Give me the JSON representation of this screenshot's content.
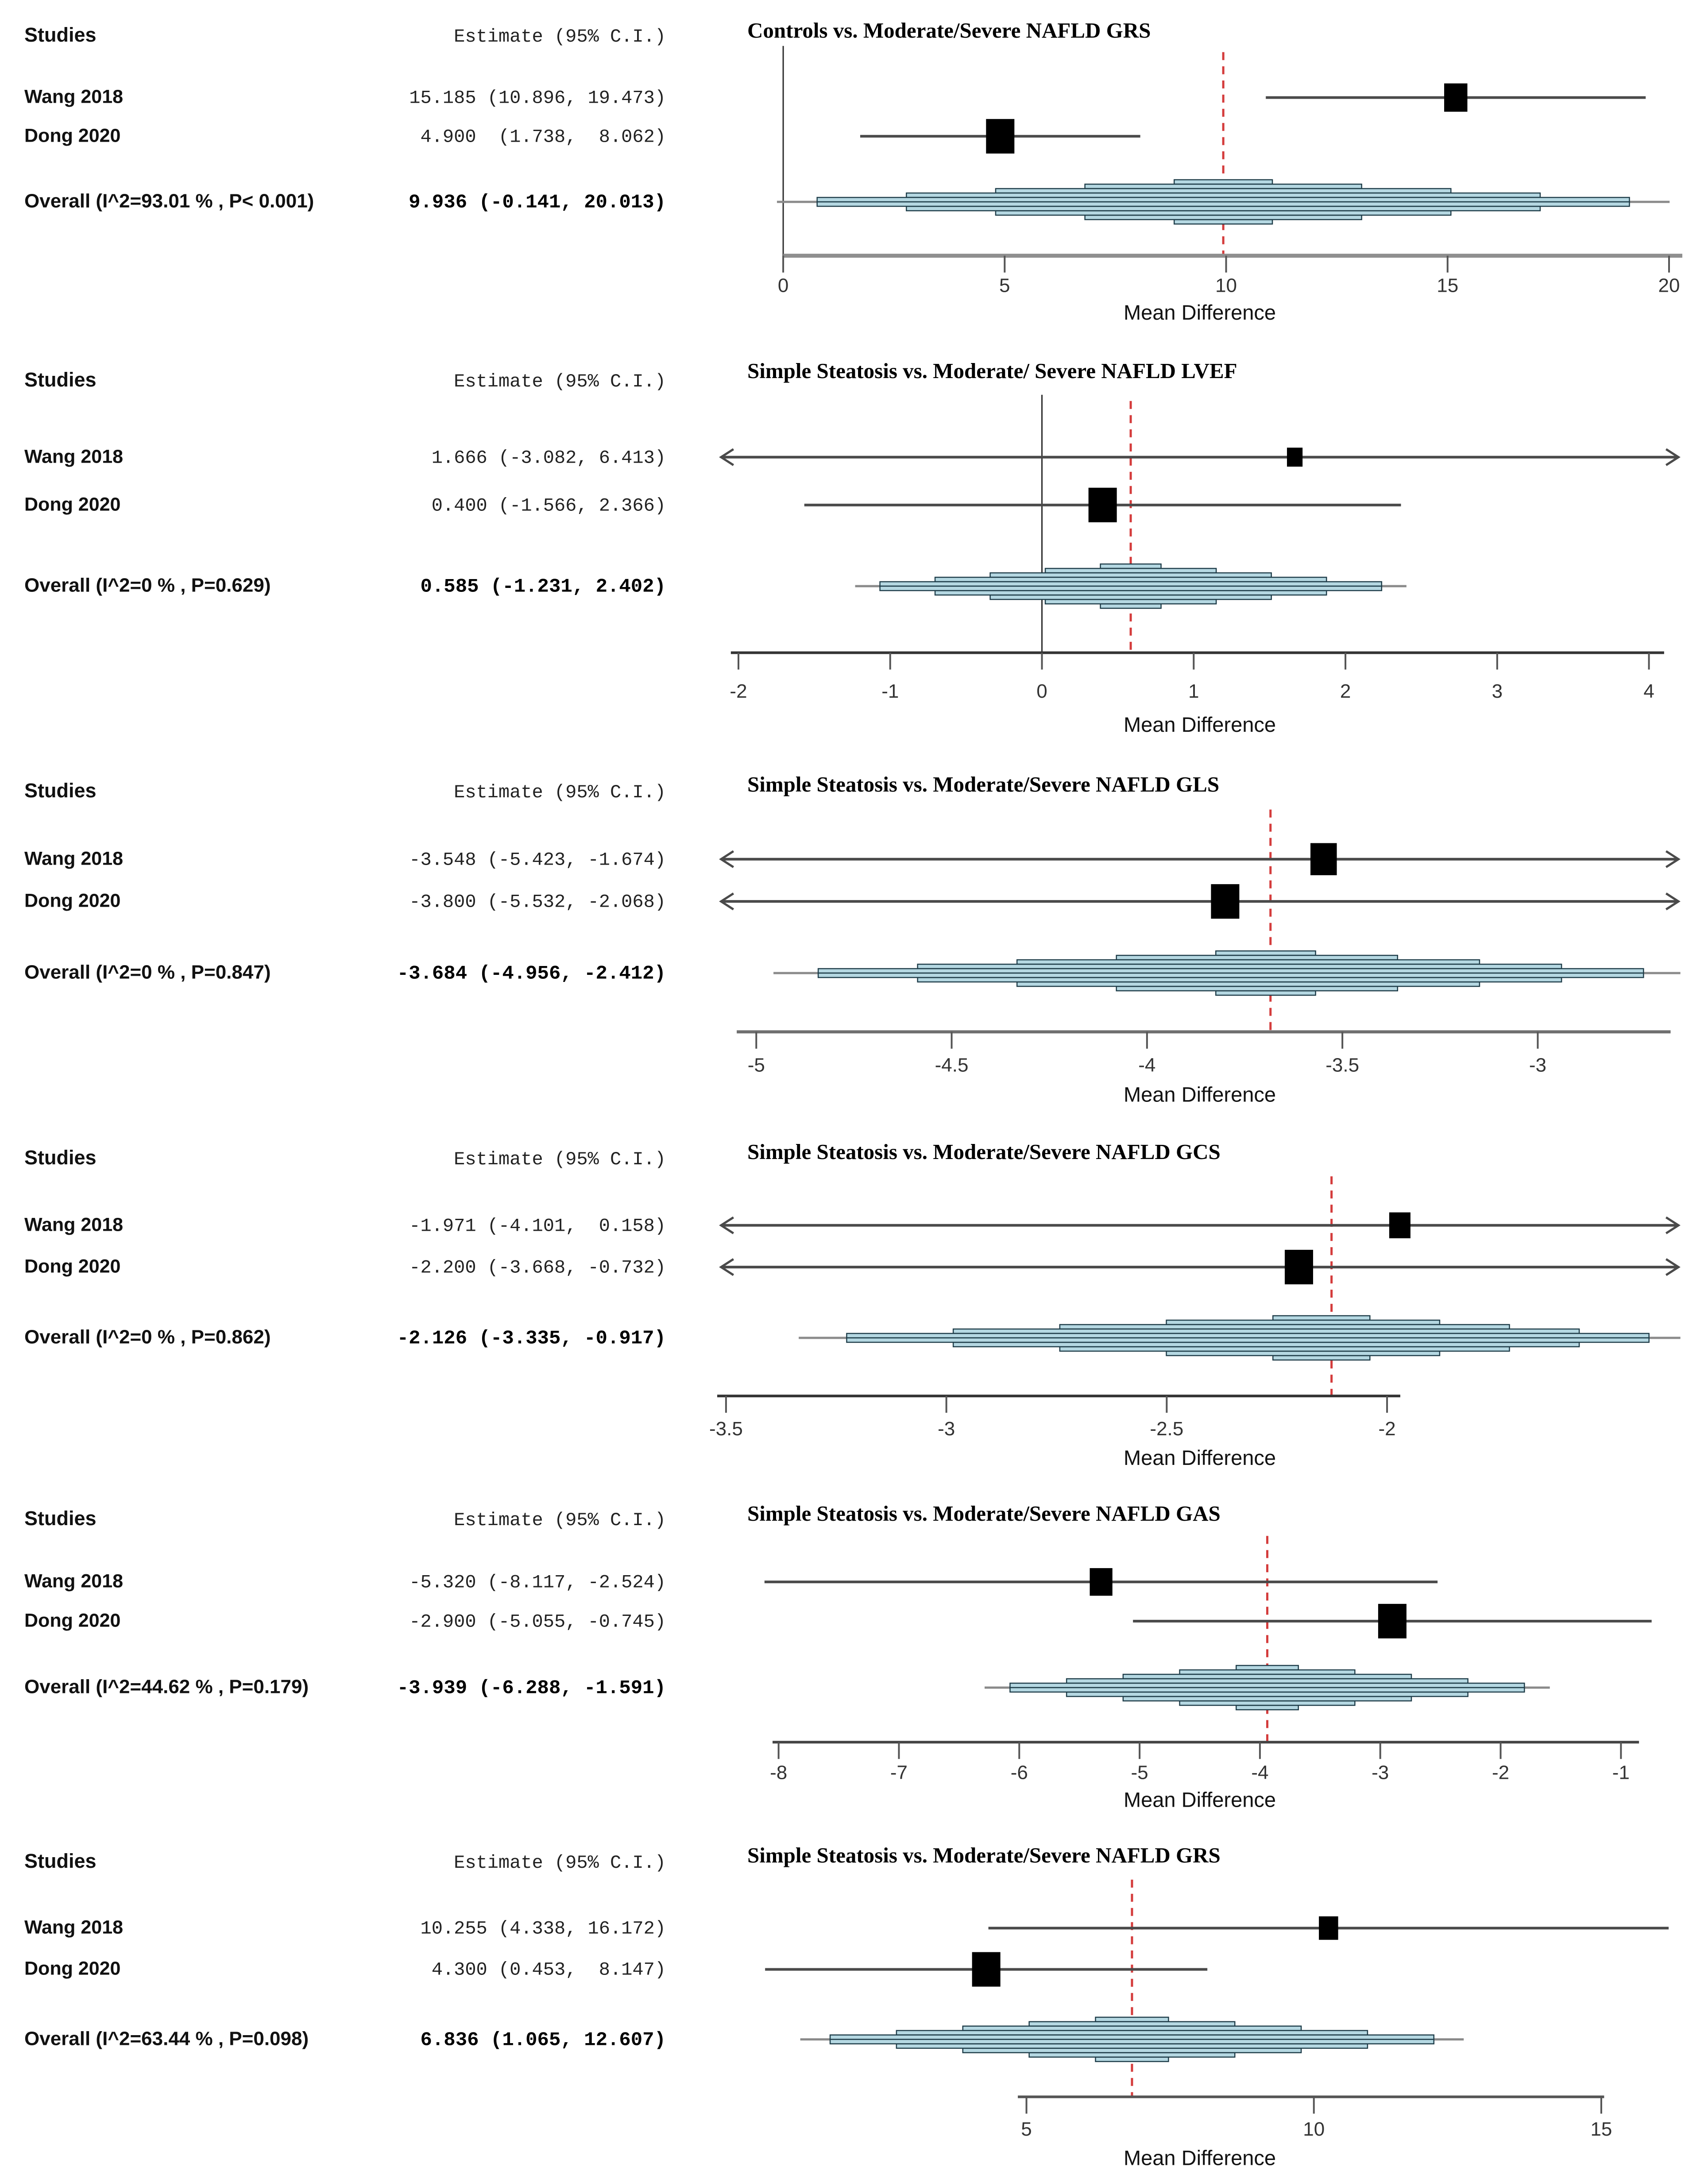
{
  "shared": {
    "studies_header": "Studies",
    "estimate_header": "Estimate (95% C.I.)"
  },
  "colors": {
    "diamond_fill": "#b5d8e2",
    "diamond_stroke": "#1f3d49",
    "dashed_line": "#d43c3c",
    "ci_line": "#4a4a4a",
    "square": "#000000",
    "tick_text": "#333333"
  },
  "chart_data": [
    {
      "type": "forest",
      "title": "Controls vs. Moderate/Severe NAFLD GRS",
      "xlabel": "Mean Difference",
      "x": {
        "domain": [
          -1.49,
          20.3
        ],
        "axis": [
          0,
          20.3
        ],
        "zero_at": 0,
        "ticks": [
          0,
          5,
          10,
          15,
          20
        ],
        "tick_labels": [
          "0",
          "5",
          "10",
          "15",
          "20"
        ],
        "axis_color": "#8f8f8f",
        "axis_width": 9
      },
      "dashed_at": 9.936,
      "studies": [
        {
          "name": "Wang 2018",
          "estimate_text": "15.185 (10.896, 19.473)",
          "est": 15.185,
          "lo": 10.896,
          "hi": 19.473,
          "weight": 0.82,
          "arrow_left": false,
          "arrow_right": false
        },
        {
          "name": "Dong 2020",
          "estimate_text": " 4.900  (1.738,  8.062)",
          "est": 4.9,
          "lo": 1.738,
          "hi": 8.062,
          "weight": 1.0,
          "arrow_left": false,
          "arrow_right": false
        }
      ],
      "overall": {
        "label": "Overall (I^2=93.01 % , P< 0.001)",
        "estimate_text": " 9.936 (-0.141, 20.013)",
        "est": 9.936,
        "lo": -0.141,
        "hi": 20.013
      }
    },
    {
      "type": "forest",
      "title": "Simple Steatosis vs. Moderate/ Severe NAFLD LVEF",
      "xlabel": "Mean Difference",
      "x": {
        "domain": [
          -2.14,
          4.22
        ],
        "axis": [
          -2.05,
          4.1
        ],
        "zero_at": 0,
        "ticks": [
          -2,
          -1,
          0,
          1,
          2,
          3,
          4
        ],
        "tick_labels": [
          "-2",
          "-1",
          "0",
          "1",
          "2",
          "3",
          "4"
        ],
        "axis_color": "#333333",
        "axis_width": 6
      },
      "dashed_at": 0.585,
      "studies": [
        {
          "name": "Wang 2018",
          "estimate_text": "1.666 (-3.082, 6.413)",
          "est": 1.666,
          "lo": -3.082,
          "hi": 6.413,
          "weight": 0.55,
          "arrow_left": true,
          "arrow_right": true
        },
        {
          "name": "Dong 2020",
          "estimate_text": "0.400 (-1.566, 2.366)",
          "est": 0.4,
          "lo": -1.566,
          "hi": 2.366,
          "weight": 1.0,
          "arrow_left": false,
          "arrow_right": false
        }
      ],
      "overall": {
        "label": "Overall (I^2=0 % , P=0.629)",
        "estimate_text": "0.585 (-1.231, 2.402)",
        "est": 0.585,
        "lo": -1.231,
        "hi": 2.402
      }
    },
    {
      "type": "forest",
      "title": "Simple Steatosis vs. Moderate/Severe NAFLD GLS",
      "xlabel": "Mean Difference",
      "x": {
        "domain": [
          -5.1,
          -2.63
        ],
        "axis": [
          -5.05,
          -2.66
        ],
        "zero_at": null,
        "ticks": [
          -5,
          -4.5,
          -4,
          -3.5,
          -3
        ],
        "tick_labels": [
          "-5",
          "-4.5",
          "-4",
          "-3.5",
          "-3"
        ],
        "axis_color": "#6f6f6f",
        "axis_width": 7
      },
      "dashed_at": -3.684,
      "studies": [
        {
          "name": "Wang 2018",
          "estimate_text": "-3.548 (-5.423, -1.674)",
          "est": -3.548,
          "lo": -5.423,
          "hi": -1.674,
          "weight": 0.93,
          "arrow_left": true,
          "arrow_right": true
        },
        {
          "name": "Dong 2020",
          "estimate_text": "-3.800 (-5.532, -2.068)",
          "est": -3.8,
          "lo": -5.532,
          "hi": -2.068,
          "weight": 1.0,
          "arrow_left": true,
          "arrow_right": true
        }
      ],
      "overall": {
        "label": "Overall (I^2=0 % , P=0.847)",
        "estimate_text": "-3.684 (-4.956, -2.412)",
        "est": -3.684,
        "lo": -4.956,
        "hi": -2.412
      }
    },
    {
      "type": "forest",
      "title": "Simple Steatosis vs. Moderate/Severe NAFLD GCS",
      "xlabel": "Mean Difference",
      "x": {
        "domain": [
          -3.52,
          -1.33
        ],
        "axis": [
          -3.52,
          -1.97
        ],
        "zero_at": null,
        "ticks": [
          -3.5,
          -3,
          -2.5,
          -2
        ],
        "tick_labels": [
          "-3.5",
          "-3",
          "-2.5",
          "-2"
        ],
        "axis_color": "#333333",
        "axis_width": 6
      },
      "dashed_at": -2.126,
      "studies": [
        {
          "name": "Wang 2018",
          "estimate_text": "-1.971 (-4.101,  0.158)",
          "est": -1.971,
          "lo": -4.101,
          "hi": 0.158,
          "weight": 0.75,
          "arrow_left": true,
          "arrow_right": true
        },
        {
          "name": "Dong 2020",
          "estimate_text": "-2.200 (-3.668, -0.732)",
          "est": -2.2,
          "lo": -3.668,
          "hi": -0.732,
          "weight": 1.0,
          "arrow_left": true,
          "arrow_right": true
        }
      ],
      "overall": {
        "label": "Overall (I^2=0 % , P=0.862)",
        "estimate_text": "-2.126 (-3.335, -0.917)",
        "est": -2.126,
        "lo": -3.335,
        "hi": -0.917
      }
    },
    {
      "type": "forest",
      "title": "Simple Steatosis vs. Moderate/Severe NAFLD GAS",
      "xlabel": "Mean Difference",
      "x": {
        "domain": [
          -8.51,
          -0.49
        ],
        "axis": [
          -8.05,
          -0.85
        ],
        "zero_at": null,
        "ticks": [
          -8,
          -7,
          -6,
          -5,
          -4,
          -3,
          -2,
          -1
        ],
        "tick_labels": [
          "-8",
          "-7",
          "-6",
          "-5",
          "-4",
          "-3",
          "-2",
          "-1"
        ],
        "axis_color": "#444444",
        "axis_width": 6
      },
      "dashed_at": -3.939,
      "studies": [
        {
          "name": "Wang 2018",
          "estimate_text": "-5.320 (-8.117, -2.524)",
          "est": -5.32,
          "lo": -8.117,
          "hi": -2.524,
          "weight": 0.8,
          "arrow_left": false,
          "arrow_right": false
        },
        {
          "name": "Dong 2020",
          "estimate_text": "-2.900 (-5.055, -0.745)",
          "est": -2.9,
          "lo": -5.055,
          "hi": -0.745,
          "weight": 1.0,
          "arrow_left": false,
          "arrow_right": false
        }
      ],
      "overall": {
        "label": "Overall (I^2=44.62 % , P=0.179)",
        "estimate_text": "-3.939 (-6.288, -1.591)",
        "est": -3.939,
        "lo": -6.288,
        "hi": -1.591
      }
    },
    {
      "type": "forest",
      "title": "Simple Steatosis vs. Moderate/Severe NAFLD GRS",
      "xlabel": "Mean Difference",
      "x": {
        "domain": [
          -0.38,
          16.41
        ],
        "axis": [
          4.85,
          15.05
        ],
        "zero_at": null,
        "ticks": [
          5,
          10,
          15
        ],
        "tick_labels": [
          "5",
          "10",
          "15"
        ],
        "axis_color": "#555555",
        "axis_width": 6
      },
      "dashed_at": 6.836,
      "studies": [
        {
          "name": "Wang 2018",
          "estimate_text": "10.255 (4.338, 16.172)",
          "est": 10.255,
          "lo": 4.338,
          "hi": 16.172,
          "weight": 0.68,
          "arrow_left": false,
          "arrow_right": false
        },
        {
          "name": "Dong 2020",
          "estimate_text": " 4.300 (0.453,  8.147)",
          "est": 4.3,
          "lo": 0.453,
          "hi": 8.147,
          "weight": 1.0,
          "arrow_left": false,
          "arrow_right": false
        }
      ],
      "overall": {
        "label": "Overall (I^2=63.44 % , P=0.098)",
        "estimate_text": " 6.836 (1.065, 12.607)",
        "est": 6.836,
        "lo": 1.065,
        "hi": 12.607
      }
    }
  ]
}
